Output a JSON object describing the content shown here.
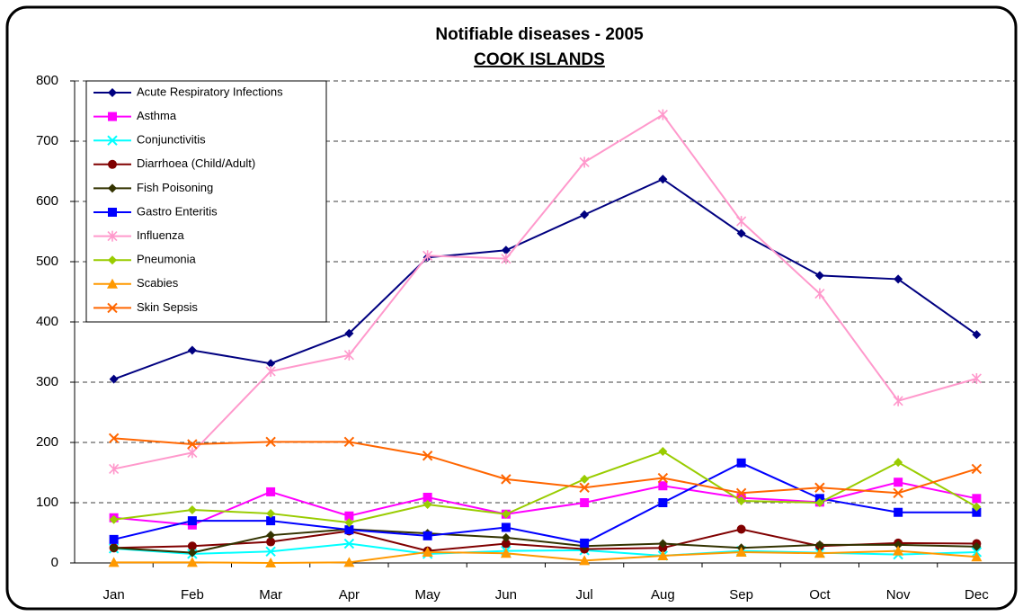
{
  "chart_data": {
    "type": "line",
    "title": "Notifiable diseases - 2005",
    "subtitle": "COOK ISLANDS",
    "categories": [
      "Jan",
      "Feb",
      "Mar",
      "Apr",
      "May",
      "Jun",
      "Jul",
      "Aug",
      "Sep",
      "Oct",
      "Nov",
      "Dec"
    ],
    "ylim": [
      0,
      800
    ],
    "yticks": [
      0,
      100,
      200,
      300,
      400,
      500,
      600,
      700,
      800
    ],
    "grid": true,
    "legend": "top-left",
    "series": [
      {
        "name": "Acute Respiratory Infections",
        "color": "#000080",
        "marker": "diamond",
        "values": [
          305,
          353,
          331,
          381,
          507,
          519,
          578,
          637,
          547,
          477,
          471,
          379
        ]
      },
      {
        "name": "Asthma",
        "color": "#FF00FF",
        "marker": "square",
        "values": [
          75,
          63,
          118,
          78,
          109,
          81,
          100,
          128,
          108,
          101,
          134,
          107
        ]
      },
      {
        "name": "Conjunctivitis",
        "color": "#00FFFF",
        "marker": "x",
        "values": [
          24,
          15,
          19,
          32,
          15,
          20,
          21,
          12,
          20,
          17,
          14,
          18
        ]
      },
      {
        "name": "Diarrhoea (Child/Adult)",
        "color": "#800000",
        "marker": "circle",
        "values": [
          25,
          28,
          35,
          53,
          20,
          32,
          23,
          25,
          56,
          28,
          33,
          32
        ]
      },
      {
        "name": "Fish Poisoning",
        "color": "#333300",
        "marker": "diamond",
        "values": [
          25,
          17,
          46,
          56,
          49,
          42,
          28,
          32,
          25,
          30,
          30,
          27
        ]
      },
      {
        "name": "Gastro Enteritis",
        "color": "#0000FF",
        "marker": "square",
        "values": [
          39,
          70,
          70,
          55,
          45,
          59,
          33,
          100,
          166,
          107,
          84,
          84
        ]
      },
      {
        "name": "Influenza",
        "color": "#FF99CC",
        "marker": "star",
        "values": [
          156,
          183,
          318,
          345,
          510,
          505,
          665,
          744,
          567,
          447,
          269,
          306
        ]
      },
      {
        "name": "Pneumonia",
        "color": "#99CC00",
        "marker": "diamond",
        "values": [
          72,
          88,
          82,
          67,
          97,
          81,
          139,
          185,
          103,
          100,
          167,
          93
        ]
      },
      {
        "name": "Scabies",
        "color": "#FF9900",
        "marker": "triangle",
        "values": [
          1,
          1,
          0,
          1,
          18,
          16,
          4,
          12,
          18,
          16,
          20,
          10
        ]
      },
      {
        "name": "Skin Sepsis",
        "color": "#FF6600",
        "marker": "x",
        "values": [
          207,
          197,
          201,
          201,
          178,
          139,
          125,
          141,
          116,
          125,
          116,
          156
        ]
      }
    ]
  }
}
